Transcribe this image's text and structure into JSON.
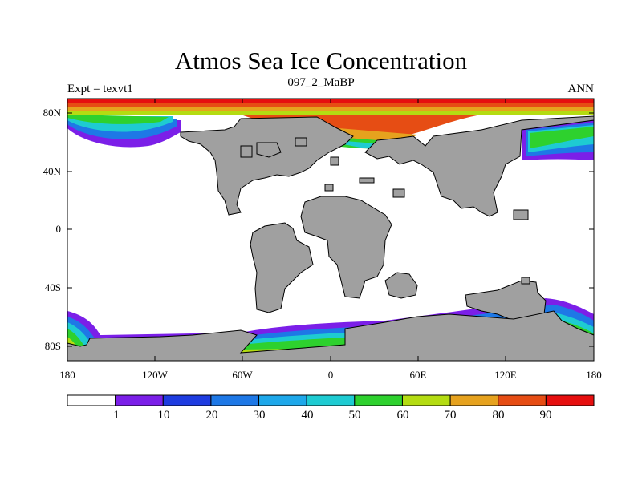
{
  "header": {
    "title": "Atmos Sea Ice Concentration",
    "subtitle": "097_2_MaBP",
    "left_label": "Expt = texvt1",
    "right_label": "ANN"
  },
  "map": {
    "land_color": "#a0a0a0",
    "ocean_color": "#ffffff",
    "lat_ticks": [
      "80N",
      "40N",
      "0",
      "40S",
      "80S"
    ],
    "lon_ticks": [
      "180",
      "120W",
      "60W",
      "0",
      "60E",
      "120E",
      "180"
    ]
  },
  "colorbar": {
    "labels": [
      "1",
      "10",
      "20",
      "30",
      "40",
      "50",
      "60",
      "70",
      "80",
      "90"
    ],
    "colors": [
      "#ffffff",
      "#7b1fe8",
      "#1e3ce0",
      "#1e78e6",
      "#1ea8ea",
      "#1ecbd2",
      "#2ed12e",
      "#b4dc12",
      "#e6a21e",
      "#e64d14",
      "#e60f0f"
    ]
  }
}
